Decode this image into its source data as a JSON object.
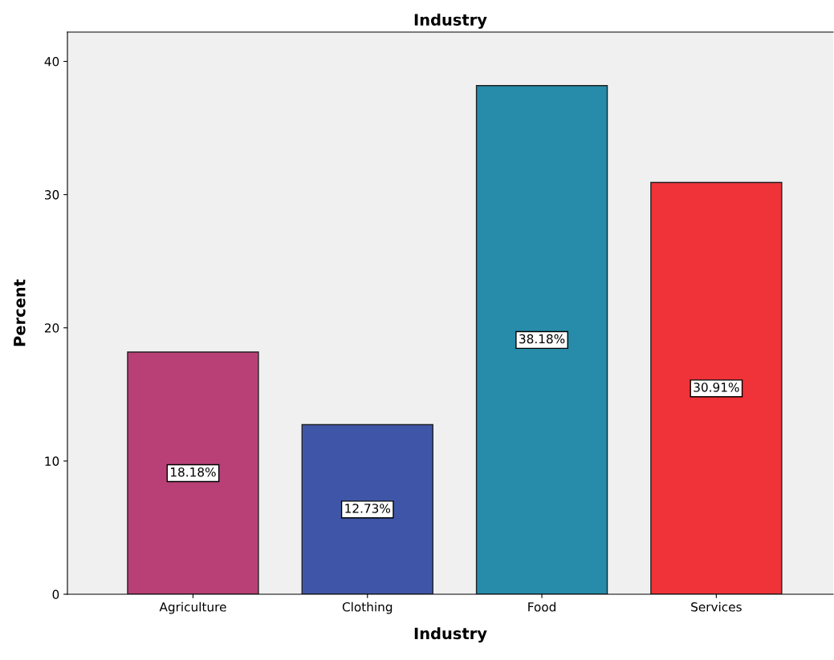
{
  "chart_data": {
    "type": "bar",
    "title": "Industry",
    "xlabel": "Industry",
    "ylabel": "Percent",
    "categories": [
      "Agriculture",
      "Clothing",
      "Food",
      "Services"
    ],
    "values": [
      18.18,
      12.73,
      38.18,
      30.91
    ],
    "colors": [
      "#b94077",
      "#3f56a8",
      "#268caa",
      "#ef3338"
    ],
    "value_labels": [
      "18.18%",
      "12.73%",
      "38.18%",
      "30.91%"
    ],
    "ylim": [
      0,
      42.2
    ],
    "yticks": [
      0,
      10,
      20,
      30,
      40
    ],
    "grid": false
  }
}
